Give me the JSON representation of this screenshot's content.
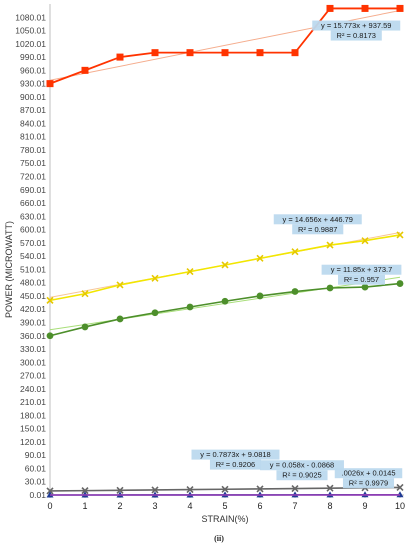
{
  "chart_data": {
    "type": "line",
    "title": "",
    "xlabel": "STRAIN(%)",
    "ylabel": "POWER (MICROWATT)",
    "caption": "(ii)",
    "x": [
      0,
      1,
      2,
      3,
      4,
      5,
      6,
      7,
      8,
      9,
      10
    ],
    "xlim": [
      0,
      10
    ],
    "ylim": [
      0.01,
      1110.01
    ],
    "y_ticks": [
      0.01,
      30.01,
      60.01,
      90.01,
      120.01,
      150.01,
      180.01,
      210.01,
      240.01,
      270.01,
      300.01,
      330.01,
      360.01,
      390.01,
      420.01,
      450.01,
      480.01,
      510.01,
      540.01,
      570.01,
      600.01,
      630.01,
      660.01,
      690.01,
      720.01,
      750.01,
      780.01,
      810.01,
      840.01,
      870.01,
      900.01,
      930.01,
      960.01,
      990.01,
      1020.01,
      1050.01,
      1080.01
    ],
    "x_ticks": [
      "0",
      "1",
      "2",
      "3",
      "4",
      "5",
      "6",
      "7",
      "8",
      "9",
      "10"
    ],
    "grid": false,
    "legend": "none",
    "series": [
      {
        "color": "#ff3300",
        "marker": "square",
        "values": [
          930,
          960,
          990,
          1000,
          1000,
          1000,
          1000,
          1000,
          1100,
          1100,
          1100
        ],
        "trendline": {
          "slope": 15.773,
          "intercept": 937.59,
          "color": "#f4a582"
        }
      },
      {
        "color": "#f2e600",
        "marker": "x",
        "values": [
          440,
          455,
          475,
          490,
          505,
          520,
          535,
          550,
          565,
          575,
          588
        ],
        "trendline": {
          "slope": 14.656,
          "intercept": 446.79,
          "color": "#f7c08a"
        }
      },
      {
        "color": "#4d8f2b",
        "marker": "circle",
        "values": [
          360,
          380,
          398,
          412,
          425,
          438,
          450,
          460,
          468,
          470,
          478
        ],
        "trendline": {
          "slope": 11.85,
          "intercept": 373.7,
          "color": "#9fdb6b"
        }
      },
      {
        "color": "#666666",
        "marker": "x",
        "values": [
          9.1,
          9.9,
          10.7,
          11.5,
          12.2,
          13.0,
          13.8,
          14.6,
          15.4,
          16.2,
          17.0
        ],
        "trendline": {
          "slope": 0.7873,
          "intercept": 9.0818,
          "color": "#888888"
        }
      },
      {
        "color": "#1f3a93",
        "marker": "triangle",
        "values": [
          0.01,
          0.01,
          0.03,
          0.08,
          0.15,
          0.2,
          0.26,
          0.32,
          0.38,
          0.44,
          0.5
        ],
        "trendline": {
          "slope": 0.058,
          "intercept": -0.0868,
          "color": "#6a7fc9"
        }
      },
      {
        "color": "#9a3fb8",
        "marker": "none",
        "values": [
          0.01,
          0.02,
          0.02,
          0.02,
          0.02,
          0.03,
          0.03,
          0.03,
          0.03,
          0.04,
          0.04
        ],
        "trendline": {
          "slope": 0.0026,
          "intercept": 0.0145,
          "color": "#c89be0"
        }
      }
    ],
    "annotations": [
      {
        "series": 0,
        "line1": "y = 15.773x + 937.59",
        "line2": "R² = 0.8173",
        "at_x": 8.75,
        "at_y": 1050
      },
      {
        "series": 1,
        "line1": "y = 14.656x + 446.79",
        "line2": "R² = 0.9887",
        "at_x": 7.65,
        "at_y": 612
      },
      {
        "series": 2,
        "line1": "y = 11.85x + 373.7",
        "line2": "R² = 0.957",
        "at_x": 8.9,
        "at_y": 498
      },
      {
        "series": 3,
        "line1": "y = 0.7873x + 9.0818",
        "line2": "R² = 0.9206",
        "at_x": 5.3,
        "at_y": 80
      },
      {
        "series": 4,
        "line1": "y = 0.058x - 0.0868",
        "line2": "R² = 0.9025",
        "at_x": 7.2,
        "at_y": 56
      },
      {
        "series": 5,
        "line1": ".0026x + 0.0145",
        "line2": "R² = 0.9979",
        "at_x": 9.1,
        "at_y": 38
      }
    ]
  }
}
